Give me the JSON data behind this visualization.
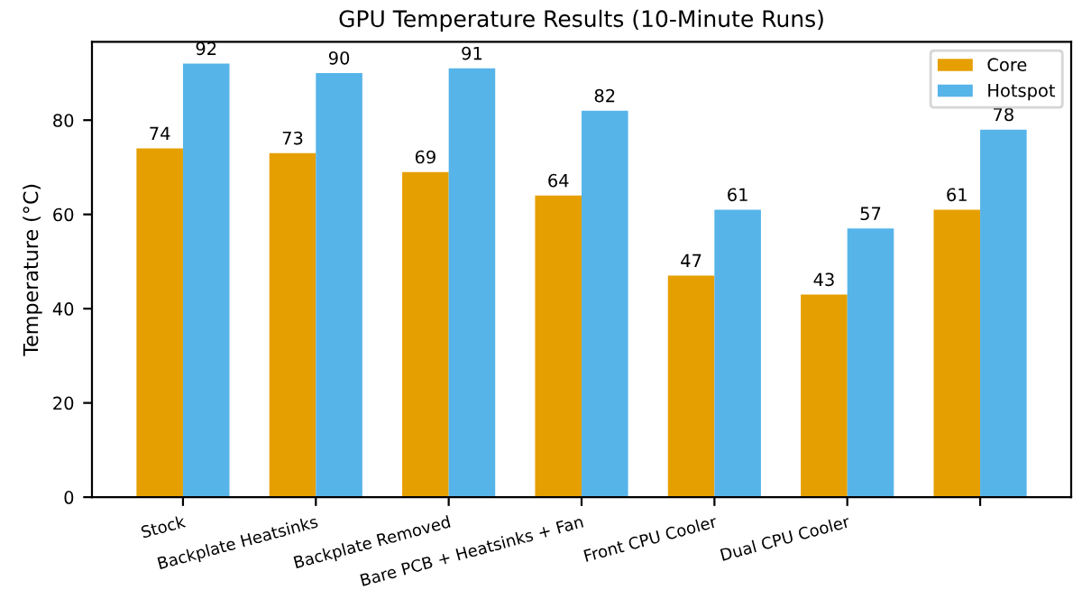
{
  "chart_data": {
    "type": "bar",
    "title": "GPU Temperature Results (10-Minute Runs)",
    "ylabel": "Temperature (°C)",
    "categories": [
      "Stock",
      "Backplate Heatsinks",
      "Backplate Removed",
      "Bare PCB + Heatsinks + Fan",
      "Front CPU Cooler",
      "Dual CPU Cooler",
      null
    ],
    "series": [
      {
        "name": "Core",
        "color": "#e69f00",
        "values": [
          74,
          73,
          69,
          64,
          47,
          43,
          61
        ]
      },
      {
        "name": "Hotspot",
        "color": "#56b4e9",
        "values": [
          92,
          90,
          91,
          82,
          61,
          57,
          78
        ]
      }
    ],
    "ylim": [
      0,
      96.6
    ],
    "yticks": [
      0,
      20,
      40,
      60,
      80
    ],
    "data_labels": true,
    "legend": "top right",
    "grid": false
  }
}
